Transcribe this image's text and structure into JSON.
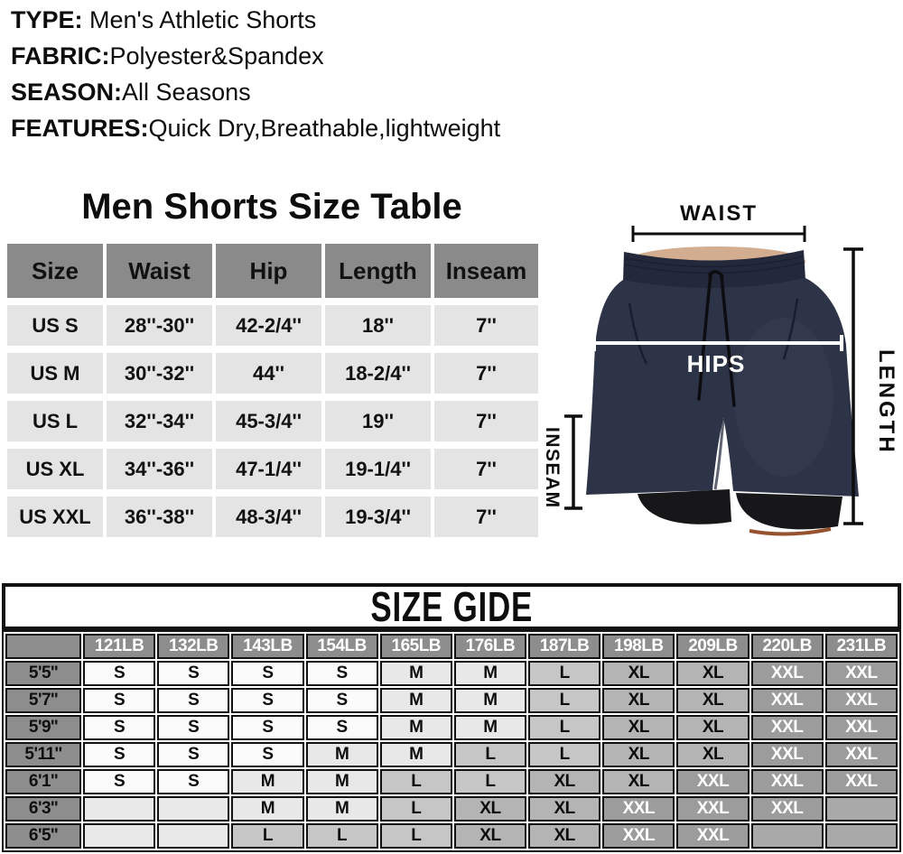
{
  "product_info": {
    "lines": [
      {
        "label": "TYPE:",
        "value": " Men's Athletic Shorts"
      },
      {
        "label": "FABRIC:",
        "value": "Polyester&Spandex"
      },
      {
        "label": "SEASON:",
        "value": "All Seasons"
      },
      {
        "label": "FEATURES:",
        "value": "Quick Dry,Breathable,lightweight"
      }
    ]
  },
  "size_table": {
    "title": "Men Shorts Size Table",
    "headers": [
      "Size",
      "Waist",
      "Hip",
      "Length",
      "Inseam"
    ],
    "rows": [
      [
        "US S",
        "28''-30''",
        "42-2/4''",
        "18''",
        "7''"
      ],
      [
        "US M",
        "30''-32''",
        "44''",
        "18-2/4''",
        "7''"
      ],
      [
        "US L",
        "32''-34''",
        "45-3/4''",
        "19''",
        "7''"
      ],
      [
        "US XL",
        "34''-36''",
        "47-1/4''",
        "19-1/4''",
        "7''"
      ],
      [
        "US XXL",
        "36''-38''",
        "48-3/4''",
        "19-3/4''",
        "7''"
      ]
    ]
  },
  "diagram": {
    "labels": {
      "waist": "WAIST",
      "hips": "HIPS",
      "length": "LENGTH",
      "inseam": "INSEAM"
    },
    "colors": {
      "shorts": "#2e3447",
      "waistband": "#23283a",
      "liner": "#17171a",
      "skin": "#d2ad90",
      "annotation": "#0d0d0d",
      "hips_annotation": "#ffffff"
    }
  },
  "size_guide": {
    "title": "SIZE GIDE",
    "weight_headers": [
      "",
      "121LB",
      "132LB",
      "143LB",
      "154LB",
      "165LB",
      "176LB",
      "187LB",
      "198LB",
      "209LB",
      "220LB",
      "231LB"
    ],
    "rows": [
      {
        "height": "5'5''",
        "sizes": [
          "S",
          "S",
          "S",
          "S",
          "M",
          "M",
          "L",
          "XL",
          "XL",
          "XXL",
          "XXL"
        ],
        "tones": [
          "s",
          "s",
          "s",
          "s",
          "m",
          "m",
          "l",
          "xl",
          "xl",
          "xxl",
          "xxl"
        ]
      },
      {
        "height": "5'7''",
        "sizes": [
          "S",
          "S",
          "S",
          "S",
          "M",
          "M",
          "L",
          "XL",
          "XL",
          "XXL",
          "XXL"
        ],
        "tones": [
          "s",
          "s",
          "s",
          "s",
          "m",
          "m",
          "l",
          "xl",
          "xl",
          "xxl",
          "xxl"
        ]
      },
      {
        "height": "5'9''",
        "sizes": [
          "S",
          "S",
          "S",
          "S",
          "M",
          "M",
          "L",
          "XL",
          "XL",
          "XXL",
          "XXL"
        ],
        "tones": [
          "s",
          "s",
          "s",
          "s",
          "m",
          "m",
          "l",
          "xl",
          "xl",
          "xxl",
          "xxl"
        ]
      },
      {
        "height": "5'11''",
        "sizes": [
          "S",
          "S",
          "S",
          "M",
          "M",
          "L",
          "L",
          "XL",
          "XL",
          "XXL",
          "XXL"
        ],
        "tones": [
          "s",
          "s",
          "s",
          "m",
          "m",
          "l",
          "l",
          "xl",
          "xl",
          "xxl",
          "xxl"
        ]
      },
      {
        "height": "6'1''",
        "sizes": [
          "S",
          "S",
          "M",
          "M",
          "L",
          "L",
          "XL",
          "XL",
          "XXL",
          "XXL",
          "XXL"
        ],
        "tones": [
          "s",
          "s",
          "m",
          "m",
          "l",
          "l",
          "xl",
          "xl",
          "xxl",
          "xxl",
          "xxl"
        ]
      },
      {
        "height": "6'3''",
        "sizes": [
          "",
          "",
          "M",
          "M",
          "L",
          "XL",
          "XL",
          "XXL",
          "XXL",
          "XXL",
          ""
        ],
        "tones": [
          "el",
          "el",
          "m",
          "m",
          "l",
          "xl",
          "xl",
          "xxl",
          "xxl",
          "xxl",
          "ed"
        ]
      },
      {
        "height": "6'5''",
        "sizes": [
          "",
          "",
          "L",
          "L",
          "L",
          "XL",
          "XL",
          "XXL",
          "XXL",
          "",
          ""
        ],
        "tones": [
          "el",
          "el",
          "l",
          "l",
          "l",
          "xl",
          "xl",
          "xxl",
          "xxl",
          "ed",
          "ed"
        ]
      }
    ]
  }
}
